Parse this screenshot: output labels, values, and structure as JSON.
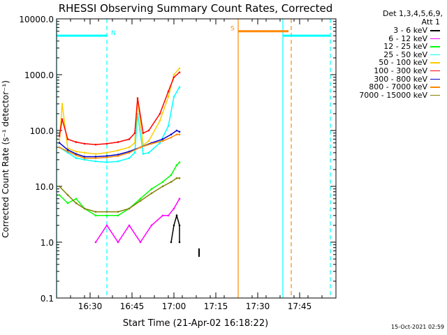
{
  "stamp": "15-Oct-2021 02:59",
  "legend": {
    "header1": "Det 1,3,4,5,6,9,",
    "header2": "Att 1"
  },
  "chart_data": {
    "type": "line",
    "title": "RHESSI Observing Summary Count Rates, Corrected",
    "xlabel": "Start Time (21-Apr-02 16:18:22)",
    "ylabel": "Corrected Count Rate (s⁻¹ detector⁻¹)",
    "y_scale": "log",
    "xlim": [
      "16:18",
      "17:58"
    ],
    "ylim": [
      0.1,
      10000
    ],
    "x_ticks": [
      "16:30",
      "16:45",
      "17:00",
      "17:15",
      "17:30",
      "17:45"
    ],
    "y_ticks": [
      "0.1",
      "1.0",
      "10.0",
      "100.0",
      "1000.0",
      "10000.0"
    ],
    "series": [
      {
        "name": "3 - 6 keV",
        "color": "#000000",
        "x": [
          "16:59",
          "17:00",
          "17:01",
          "17:02",
          "17:02"
        ],
        "y": [
          1.0,
          2.0,
          3.0,
          2.0,
          1.0
        ]
      },
      {
        "name": "6 - 12 keV",
        "color": "#ff00ff",
        "x": [
          "16:32",
          "16:36",
          "16:40",
          "16:44",
          "16:48",
          "16:52",
          "16:56",
          "16:58",
          "17:00",
          "17:02"
        ],
        "y": [
          1.0,
          2.0,
          1.0,
          2.0,
          1.0,
          2.0,
          3.0,
          3.0,
          4.0,
          6.0
        ]
      },
      {
        "name": "12 - 25 keV",
        "color": "#00ff00",
        "x": [
          "16:19",
          "16:22",
          "16:25",
          "16:28",
          "16:32",
          "16:36",
          "16:40",
          "16:44",
          "16:48",
          "16:52",
          "16:56",
          "16:59",
          "17:01",
          "17:02"
        ],
        "y": [
          7.0,
          5.0,
          6.0,
          4.0,
          3.0,
          3.0,
          3.0,
          4.0,
          6.0,
          9.0,
          12.0,
          16.0,
          24.0,
          27.0
        ]
      },
      {
        "name": "25 - 50 keV",
        "color": "#00ffff",
        "x": [
          "16:19",
          "16:22",
          "16:25",
          "16:28",
          "16:32",
          "16:36",
          "16:40",
          "16:44",
          "16:46",
          "16:47",
          "16:49",
          "16:51",
          "16:55",
          "16:58",
          "17:00",
          "17:02"
        ],
        "y": [
          50.0,
          40.0,
          32.0,
          30.0,
          28.0,
          27.0,
          28.0,
          32.0,
          40.0,
          200.0,
          38.0,
          40.0,
          60.0,
          120.0,
          400.0,
          600.0
        ]
      },
      {
        "name": "50 - 100 keV",
        "color": "#ffcc00",
        "x": [
          "16:19",
          "16:20",
          "16:22",
          "16:25",
          "16:28",
          "16:32",
          "16:36",
          "16:40",
          "16:44",
          "16:46",
          "16:47",
          "16:49",
          "16:51",
          "16:55",
          "16:58",
          "17:00",
          "17:02"
        ],
        "y": [
          60.0,
          300.0,
          48.0,
          42.0,
          40.0,
          38.0,
          40.0,
          44.0,
          50.0,
          60.0,
          350.0,
          55.0,
          65.0,
          150.0,
          400.0,
          1000.0,
          1300.0
        ]
      },
      {
        "name": "100 - 300 keV",
        "color": "#ff0000",
        "x": [
          "16:19",
          "16:20",
          "16:22",
          "16:25",
          "16:28",
          "16:32",
          "16:36",
          "16:40",
          "16:44",
          "16:46",
          "16:47",
          "16:49",
          "16:51",
          "16:55",
          "16:58",
          "17:00",
          "17:02"
        ],
        "y": [
          80.0,
          160.0,
          70.0,
          62.0,
          58.0,
          56.0,
          58.0,
          62.0,
          70.0,
          90.0,
          380.0,
          90.0,
          100.0,
          200.0,
          500.0,
          900.0,
          1100.0
        ]
      },
      {
        "name": "300 - 800 keV",
        "color": "#0000cc",
        "x": [
          "16:19",
          "16:22",
          "16:25",
          "16:28",
          "16:32",
          "16:36",
          "16:40",
          "16:44",
          "16:48",
          "16:52",
          "16:56",
          "16:59",
          "17:01",
          "17:02"
        ],
        "y": [
          60.0,
          45.0,
          38.0,
          34.0,
          34.0,
          35.0,
          37.0,
          42.0,
          50.0,
          60.0,
          70.0,
          85.0,
          100.0,
          95.0
        ]
      },
      {
        "name": "800 - 7000 keV",
        "color": "#ff8800",
        "x": [
          "16:19",
          "16:22",
          "16:25",
          "16:28",
          "16:32",
          "16:36",
          "16:40",
          "16:44",
          "16:48",
          "16:52",
          "16:56",
          "16:59",
          "17:01",
          "17:02"
        ],
        "y": [
          50.0,
          42.0,
          36.0,
          32.0,
          32.0,
          33.0,
          35.0,
          40.0,
          50.0,
          58.0,
          65.0,
          75.0,
          85.0,
          85.0
        ]
      },
      {
        "name": "7000 - 15000 keV",
        "color": "#808000",
        "x": [
          "16:19",
          "16:22",
          "16:25",
          "16:28",
          "16:32",
          "16:36",
          "16:40",
          "16:44",
          "16:48",
          "16:52",
          "16:56",
          "16:59",
          "17:01",
          "17:02"
        ],
        "y": [
          10.0,
          7.0,
          5.0,
          4.0,
          3.5,
          3.5,
          3.5,
          4.0,
          5.5,
          7.5,
          10.0,
          12.0,
          14.0,
          14.0
        ]
      }
    ],
    "flag_bars": [
      {
        "label": "N",
        "color": "#00ffff",
        "x_start": "16:18",
        "x_end": "16:36",
        "y": 5000
      },
      {
        "label": "S",
        "color": "#ff8800",
        "x_start": "17:23",
        "x_end": "17:41",
        "y": 6000
      },
      {
        "label": "",
        "color": "#00ffff",
        "x_start": "17:39",
        "x_end": "17:56",
        "y": 5000
      }
    ],
    "vertical_lines": [
      {
        "x": "16:18",
        "color": "#00ffff",
        "style": "solid"
      },
      {
        "x": "16:36",
        "color": "#00ffff",
        "style": "dashed"
      },
      {
        "x": "17:23",
        "color": "#ff8800",
        "style": "solid"
      },
      {
        "x": "17:39",
        "color": "#00ffff",
        "style": "solid"
      },
      {
        "x": "17:42",
        "color": "#ff8800",
        "style": "dashed"
      },
      {
        "x": "17:56",
        "color": "#00ffff",
        "style": "dashed"
      }
    ],
    "tick_mark": {
      "x": "17:09",
      "y": 0.65,
      "color": "#000000"
    }
  }
}
